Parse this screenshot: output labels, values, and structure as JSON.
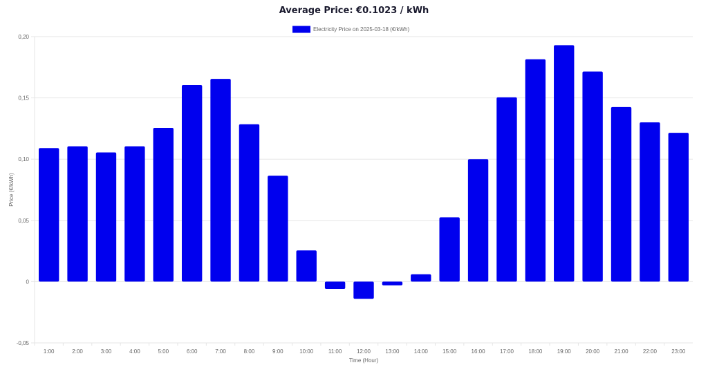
{
  "chart_data": {
    "type": "bar",
    "title": "Average Price: €0.1023 / kWh",
    "xlabel": "Time (Hour)",
    "ylabel": "Price (€/kWh)",
    "ylim": [
      -0.05,
      0.2
    ],
    "yticks": [
      "-0,05",
      "0",
      "0,05",
      "0,10",
      "0,15",
      "0,20"
    ],
    "ytick_values": [
      -0.05,
      0,
      0.05,
      0.1,
      0.15,
      0.2
    ],
    "grid": true,
    "legend_position": "top",
    "categories": [
      "1:00",
      "2:00",
      "3:00",
      "4:00",
      "5:00",
      "6:00",
      "7:00",
      "8:00",
      "9:00",
      "10:00",
      "11:00",
      "12:00",
      "13:00",
      "14:00",
      "15:00",
      "16:00",
      "17:00",
      "18:00",
      "19:00",
      "20:00",
      "21:00",
      "22:00",
      "23:00"
    ],
    "series": [
      {
        "name": "Electricity Price on 2025-03-18 (€/kWh)",
        "color": "#0000ee",
        "values": [
          0.109,
          0.1105,
          0.1055,
          0.1105,
          0.1255,
          0.1605,
          0.1655,
          0.1285,
          0.0865,
          0.0255,
          -0.006,
          -0.014,
          -0.003,
          0.006,
          0.0525,
          0.1,
          0.1505,
          0.1815,
          0.193,
          0.1715,
          0.1425,
          0.13,
          0.1215
        ]
      }
    ]
  }
}
